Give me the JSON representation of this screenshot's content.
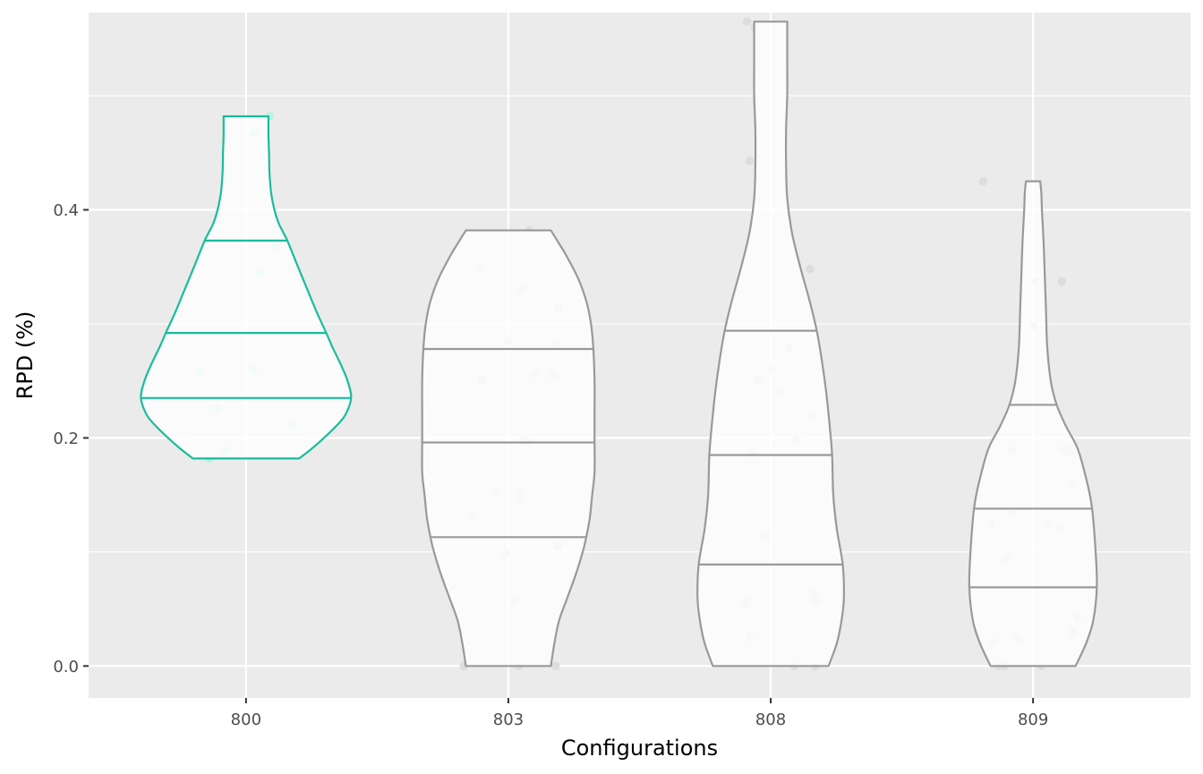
{
  "chart_data": {
    "type": "violin",
    "xlabel": "Configurations",
    "ylabel": "RPD (%)",
    "categories": [
      "800",
      "803",
      "808",
      "809"
    ],
    "ylim": [
      -0.028,
      0.573
    ],
    "yticks": [
      0.0,
      0.2,
      0.4
    ],
    "ytick_labels": [
      "0.0",
      "0.2",
      "0.4"
    ],
    "grid": true,
    "background": "#ebebeb",
    "colors": {
      "highlight": "#1abc9c",
      "default": "#999999",
      "point": "#dddddd",
      "point_highlight": "#bdf0e6"
    },
    "highlighted_category": "800",
    "violins": [
      {
        "category": "800",
        "min": 0.182,
        "max": 0.482,
        "quantiles": [
          0.235,
          0.292,
          0.373
        ],
        "profile": [
          [
            0.182,
            0.45
          ],
          [
            0.19,
            0.55
          ],
          [
            0.2,
            0.66
          ],
          [
            0.21,
            0.76
          ],
          [
            0.22,
            0.84
          ],
          [
            0.235,
            0.89
          ],
          [
            0.25,
            0.86
          ],
          [
            0.265,
            0.8
          ],
          [
            0.28,
            0.73
          ],
          [
            0.292,
            0.68
          ],
          [
            0.31,
            0.6
          ],
          [
            0.33,
            0.52
          ],
          [
            0.35,
            0.44
          ],
          [
            0.373,
            0.35
          ],
          [
            0.39,
            0.27
          ],
          [
            0.41,
            0.22
          ],
          [
            0.43,
            0.2
          ],
          [
            0.45,
            0.195
          ],
          [
            0.465,
            0.19
          ],
          [
            0.482,
            0.19
          ]
        ],
        "points": [
          [
            -0.17,
            0.259
          ],
          [
            -0.11,
            0.226
          ],
          [
            -0.14,
            0.182
          ],
          [
            -0.08,
            0.19
          ],
          [
            0.03,
            0.467
          ],
          [
            0.09,
            0.482
          ],
          [
            0.11,
            0.368
          ],
          [
            0.05,
            0.345
          ],
          [
            0.03,
            0.26
          ],
          [
            0.18,
            0.211
          ]
        ]
      },
      {
        "category": "803",
        "min": 0.0,
        "max": 0.382,
        "quantiles": [
          0.113,
          0.196,
          0.278
        ],
        "profile": [
          [
            0.0,
            0.36
          ],
          [
            0.02,
            0.39
          ],
          [
            0.04,
            0.43
          ],
          [
            0.06,
            0.5
          ],
          [
            0.08,
            0.57
          ],
          [
            0.1,
            0.63
          ],
          [
            0.113,
            0.66
          ],
          [
            0.13,
            0.69
          ],
          [
            0.15,
            0.71
          ],
          [
            0.17,
            0.73
          ],
          [
            0.196,
            0.73
          ],
          [
            0.22,
            0.73
          ],
          [
            0.25,
            0.73
          ],
          [
            0.278,
            0.72
          ],
          [
            0.3,
            0.7
          ],
          [
            0.32,
            0.66
          ],
          [
            0.34,
            0.59
          ],
          [
            0.36,
            0.49
          ],
          [
            0.372,
            0.42
          ],
          [
            0.382,
            0.36
          ]
        ],
        "points": [
          [
            -0.17,
            0.0
          ],
          [
            0.04,
            0.0
          ],
          [
            0.18,
            0.0
          ],
          [
            -0.14,
            0.133
          ],
          [
            -0.04,
            0.152
          ],
          [
            0.04,
            0.145
          ],
          [
            0.04,
            0.152
          ],
          [
            -0.01,
            0.099
          ],
          [
            0.02,
            0.057
          ],
          [
            0.19,
            0.105
          ],
          [
            -0.1,
            0.25
          ],
          [
            0.0,
            0.285
          ],
          [
            0.1,
            0.256
          ],
          [
            0.17,
            0.255
          ],
          [
            0.19,
            0.282
          ],
          [
            0.07,
            0.197
          ],
          [
            0.06,
            0.197
          ],
          [
            0.05,
            0.33
          ],
          [
            0.19,
            0.315
          ],
          [
            -0.11,
            0.35
          ],
          [
            0.08,
            0.382
          ]
        ]
      },
      {
        "category": "808",
        "min": 0.0,
        "max": 0.565,
        "quantiles": [
          0.089,
          0.185,
          0.294
        ],
        "profile": [
          [
            0.0,
            0.49
          ],
          [
            0.02,
            0.56
          ],
          [
            0.04,
            0.6
          ],
          [
            0.06,
            0.62
          ],
          [
            0.089,
            0.61
          ],
          [
            0.12,
            0.56
          ],
          [
            0.15,
            0.53
          ],
          [
            0.185,
            0.52
          ],
          [
            0.21,
            0.5
          ],
          [
            0.24,
            0.47
          ],
          [
            0.27,
            0.43
          ],
          [
            0.294,
            0.39
          ],
          [
            0.32,
            0.33
          ],
          [
            0.35,
            0.25
          ],
          [
            0.38,
            0.18
          ],
          [
            0.41,
            0.14
          ],
          [
            0.44,
            0.13
          ],
          [
            0.47,
            0.13
          ],
          [
            0.5,
            0.14
          ],
          [
            0.53,
            0.14
          ],
          [
            0.565,
            0.14
          ]
        ],
        "points": [
          [
            -0.09,
            0.565
          ],
          [
            -0.06,
            0.56
          ],
          [
            -0.08,
            0.443
          ],
          [
            0.09,
            0.0
          ],
          [
            0.17,
            0.0
          ],
          [
            0.17,
            0.0
          ],
          [
            -0.08,
            0.025
          ],
          [
            -0.09,
            0.058
          ],
          [
            -0.1,
            0.054
          ],
          [
            0.16,
            0.064
          ],
          [
            0.17,
            0.057
          ],
          [
            -0.03,
            0.113
          ],
          [
            -0.02,
            0.115
          ],
          [
            -0.07,
            0.186
          ],
          [
            0.1,
            0.2
          ],
          [
            0.16,
            0.22
          ],
          [
            -0.05,
            0.25
          ],
          [
            0.0,
            0.26
          ],
          [
            0.03,
            0.24
          ],
          [
            0.07,
            0.278
          ],
          [
            0.15,
            0.348
          ]
        ]
      },
      {
        "category": "809",
        "min": 0.0,
        "max": 0.425,
        "quantiles": [
          0.069,
          0.138,
          0.229
        ],
        "profile": [
          [
            0.0,
            0.36
          ],
          [
            0.02,
            0.45
          ],
          [
            0.04,
            0.51
          ],
          [
            0.069,
            0.54
          ],
          [
            0.1,
            0.53
          ],
          [
            0.138,
            0.5
          ],
          [
            0.16,
            0.46
          ],
          [
            0.19,
            0.38
          ],
          [
            0.21,
            0.28
          ],
          [
            0.229,
            0.2
          ],
          [
            0.25,
            0.15
          ],
          [
            0.28,
            0.12
          ],
          [
            0.31,
            0.11
          ],
          [
            0.34,
            0.1
          ],
          [
            0.37,
            0.09
          ],
          [
            0.4,
            0.075
          ],
          [
            0.415,
            0.07
          ],
          [
            0.425,
            0.06
          ]
        ],
        "points": [
          [
            -0.19,
            0.425
          ],
          [
            -0.16,
            0.125
          ],
          [
            -0.08,
            0.134
          ],
          [
            -0.08,
            0.189
          ],
          [
            0.12,
            0.19
          ],
          [
            0.15,
            0.187
          ],
          [
            0.15,
            0.16
          ],
          [
            0.06,
            0.125
          ],
          [
            0.1,
            0.121
          ],
          [
            -0.1,
            0.094
          ],
          [
            -0.15,
            0.021
          ],
          [
            -0.11,
            0.0
          ],
          [
            -0.13,
            0.0
          ],
          [
            0.03,
            0.0
          ],
          [
            -0.06,
            0.024
          ],
          [
            0.15,
            0.03
          ],
          [
            0.17,
            0.042
          ],
          [
            0.0,
            0.298
          ],
          [
            0.01,
            0.337
          ],
          [
            0.11,
            0.337
          ]
        ]
      }
    ]
  }
}
